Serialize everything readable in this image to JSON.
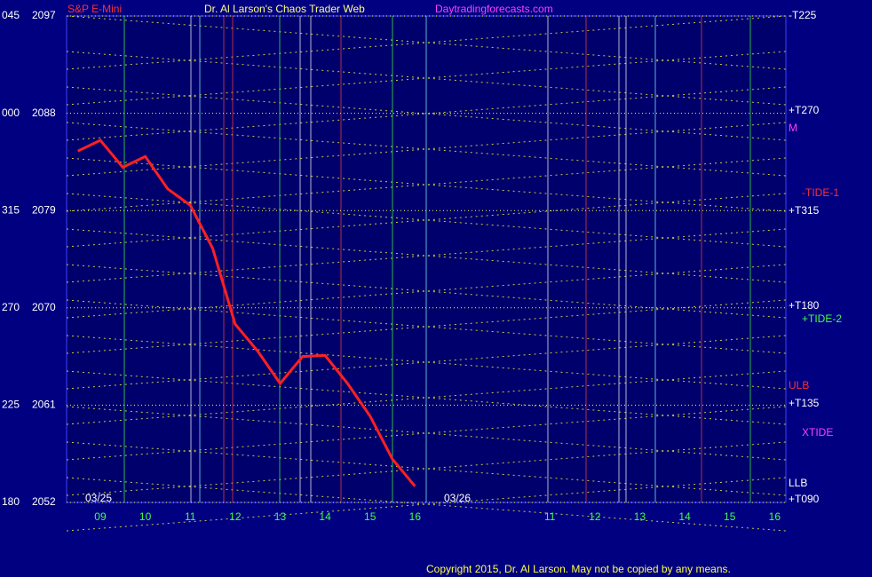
{
  "chart_data": {
    "type": "line",
    "title": "Dr. Al Larson's Chaos Trader Web",
    "symbol": "S&P E-Mini",
    "website": "Daytradingforecasts.com",
    "copyright": "Copyright 2015, Dr. Al Larson. May not be copied by any means.",
    "dates": [
      "03/25",
      "03/26"
    ],
    "categories": [
      null,
      "09",
      null,
      "10",
      null,
      "11",
      null,
      "12",
      null,
      "13",
      null,
      "14",
      null,
      "15",
      null,
      "16",
      null,
      null,
      null,
      null,
      null,
      "11",
      null,
      "12",
      null,
      "13",
      null,
      "14",
      null,
      "15",
      null,
      "16"
    ],
    "series": [
      {
        "color": "#ff2020",
        "values": [
          2084.5,
          2085.5,
          2083,
          2084,
          2081,
          2079.5,
          2075.5,
          2068.5,
          2066,
          2063,
          2065.5,
          2065.6,
          2063,
          2060,
          2056,
          2053.5,
          null,
          null,
          null,
          null,
          null,
          null,
          null,
          null,
          null,
          null,
          null,
          null,
          null,
          null,
          null,
          null
        ]
      }
    ],
    "ylim": [
      2052,
      2097
    ],
    "yticks": [
      2052,
      2061,
      2070,
      2079,
      2088,
      2097
    ],
    "angle_labels": [
      "180",
      "225",
      "270",
      "315",
      "000",
      "045"
    ],
    "right_labels": [
      {
        "text": "-T225",
        "color": "#ffffff"
      },
      {
        "text": "+T270",
        "color": "#ffffff"
      },
      {
        "text": "M",
        "color": "#ff40ff"
      },
      {
        "text": "-TIDE-1",
        "color": "#ff3030"
      },
      {
        "text": "+T315",
        "color": "#ffffff"
      },
      {
        "text": "+T180",
        "color": "#ffffff"
      },
      {
        "text": "+TIDE-2",
        "color": "#40ff40"
      },
      {
        "text": "ULB",
        "color": "#ff3030"
      },
      {
        "text": "+T135",
        "color": "#ffffff"
      },
      {
        "text": "XTIDE",
        "color": "#ff40ff"
      },
      {
        "text": "LLB",
        "color": "#ffffff"
      },
      {
        "text": "+T090",
        "color": "#ffffff"
      }
    ]
  }
}
